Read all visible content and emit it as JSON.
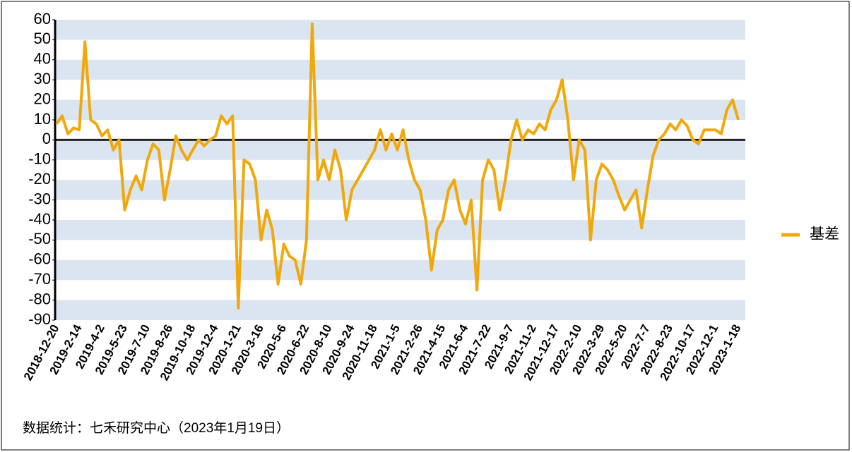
{
  "chart_data": {
    "type": "line",
    "source": "数据统计：七禾研究中心（2023年1月19日）",
    "categories": [
      "2018-12-20",
      null,
      null,
      null,
      "2019-2-14",
      null,
      null,
      null,
      "2019-4-2",
      null,
      null,
      null,
      "2019-5-23",
      null,
      null,
      null,
      "2019-7-10",
      null,
      null,
      null,
      "2019-8-26",
      null,
      null,
      null,
      "2019-10-18",
      null,
      null,
      null,
      "2019-12-4",
      null,
      null,
      null,
      "2020-1-21",
      null,
      null,
      null,
      "2020-3-16",
      null,
      null,
      null,
      "2020-5-6",
      null,
      null,
      null,
      "2020-6-22",
      null,
      null,
      null,
      "2020-8-10",
      null,
      null,
      null,
      "2020-9-24",
      null,
      null,
      null,
      "2020-11-18",
      null,
      null,
      null,
      "2021-1-5",
      null,
      null,
      null,
      "2021-2-26",
      null,
      null,
      null,
      "2021-4-15",
      null,
      null,
      null,
      "2021-6-4",
      null,
      null,
      null,
      "2021-7-22",
      null,
      null,
      null,
      "2021-9-7",
      null,
      null,
      null,
      "2021-11-2",
      null,
      null,
      null,
      "2021-12-17",
      null,
      null,
      null,
      "2022-2-10",
      null,
      null,
      null,
      "2022-3-29",
      null,
      null,
      null,
      "2022-5-20",
      null,
      null,
      null,
      "2022-7-7",
      null,
      null,
      null,
      "2022-8-23",
      null,
      null,
      null,
      "2022-10-17",
      null,
      null,
      null,
      "2022-12-1",
      null,
      null,
      null,
      "2023-1-18"
    ],
    "series": [
      {
        "name": "基差",
        "color": "#f0a80a",
        "values": [
          8,
          12,
          3,
          6,
          5,
          49,
          10,
          8,
          2,
          5,
          -5,
          0,
          -35,
          -25,
          -18,
          -25,
          -10,
          -2,
          -5,
          -30,
          -15,
          2,
          -5,
          -10,
          -5,
          0,
          -3,
          0,
          2,
          12,
          8,
          12,
          -84,
          -10,
          -12,
          -20,
          -50,
          -35,
          -45,
          -72,
          -52,
          -58,
          -60,
          -72,
          -50,
          58,
          -20,
          -10,
          -20,
          -5,
          -15,
          -40,
          -25,
          -20,
          -15,
          -10,
          -5,
          5,
          -5,
          3,
          -5,
          5,
          -10,
          -20,
          -25,
          -40,
          -65,
          -45,
          -40,
          -25,
          -20,
          -35,
          -42,
          -30,
          -75,
          -20,
          -10,
          -15,
          -35,
          -20,
          0,
          10,
          0,
          5,
          3,
          8,
          5,
          15,
          20,
          30,
          10,
          -20,
          0,
          -5,
          -50,
          -20,
          -12,
          -15,
          -20,
          -28,
          -35,
          -30,
          -25,
          -44,
          -25,
          -8,
          0,
          3,
          8,
          5,
          10,
          7,
          0,
          -2,
          5,
          5,
          5,
          3,
          15,
          20,
          10
        ]
      }
    ],
    "ylim": [
      -90,
      60
    ],
    "yticks": [
      -90,
      -80,
      -70,
      -60,
      -50,
      -40,
      -30,
      -20,
      -10,
      0,
      10,
      20,
      30,
      40,
      50,
      60
    ],
    "grid": "bands",
    "band_color": "#dbe5f1",
    "legend": "right"
  }
}
